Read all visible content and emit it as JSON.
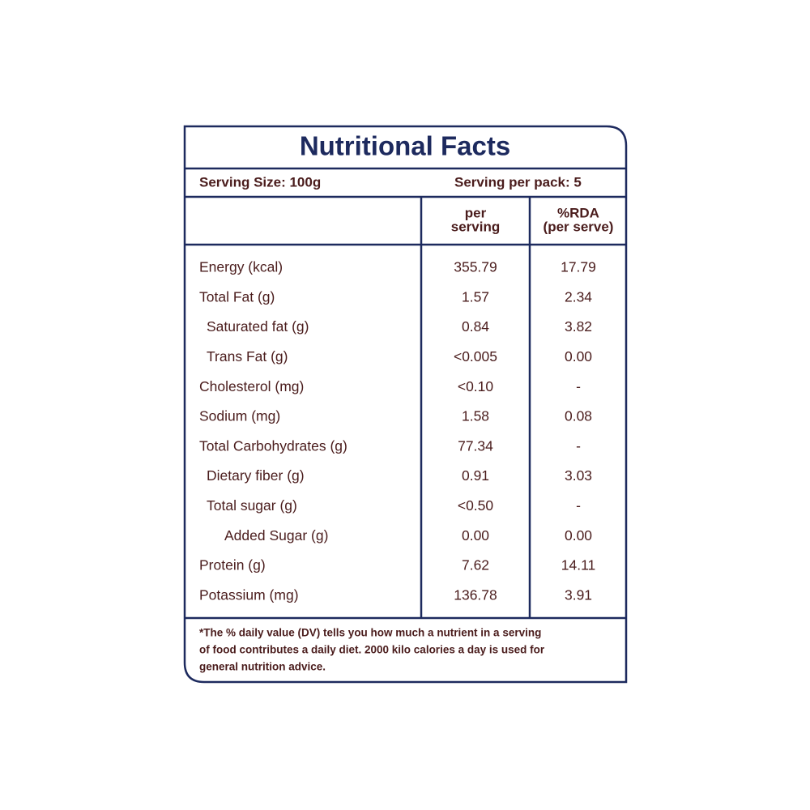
{
  "title": "Nutritional Facts",
  "serving": {
    "size": "Serving Size: 100g",
    "per_pack": "Serving per pack: 5"
  },
  "table": {
    "headers": [
      [
        "per",
        "serving"
      ],
      [
        "%RDA",
        "(per serve)"
      ]
    ],
    "rows": [
      {
        "name": "Energy (kcal)",
        "per_serving": "355.79",
        "rda": "17.79"
      },
      {
        "name": "Total Fat (g)",
        "per_serving": "1.57",
        "rda": "2.34"
      },
      {
        "name": "Saturated fat (g)",
        "per_serving": "0.84",
        "rda": "3.82"
      },
      {
        "name": "Trans Fat (g)",
        "per_serving": "<0.005",
        "rda": "0.00"
      },
      {
        "name": "Cholesterol (mg)",
        "per_serving": "<0.10",
        "rda": "-"
      },
      {
        "name": "Sodium (mg)",
        "per_serving": "1.58",
        "rda": "0.08"
      },
      {
        "name": "Total Carbohydrates  (g)",
        "per_serving": "77.34",
        "rda": "-"
      },
      {
        "name": "Dietary fiber (g)",
        "per_serving": "0.91",
        "rda": "3.03"
      },
      {
        "name": "Total sugar (g)",
        "per_serving": "<0.50",
        "rda": "-"
      },
      {
        "name": "Added Sugar (g)",
        "per_serving": "0.00",
        "rda": "0.00"
      },
      {
        "name": "Protein (g)",
        "per_serving": "7.62",
        "rda": "14.11"
      },
      {
        "name": "Potassium (mg)",
        "per_serving": "136.78",
        "rda": "3.91"
      }
    ]
  },
  "footnote": [
    "*The % daily value (DV) tells you how much a nutrient in a serving",
    "of food contributes a daily diet. 2000 kilo calories a day is used for",
    "general nutrition advice."
  ]
}
